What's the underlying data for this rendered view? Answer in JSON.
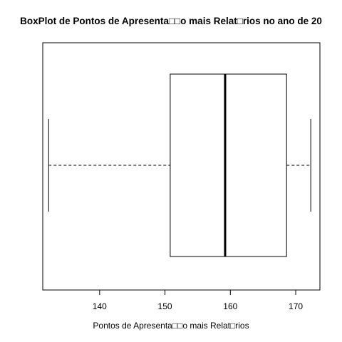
{
  "chart_data": {
    "type": "boxplot",
    "orientation": "horizontal",
    "title": "BoxPlot de Pontos de Apresenta□□o mais Relat□rios no ano de 20",
    "xlabel": "Pontos de Apresenta□□o mais Relat□rios",
    "ylabel": "",
    "xlim": [
      131.3,
      173.7
    ],
    "x_ticks": [
      140,
      150,
      160,
      170
    ],
    "x_tick_labels": [
      "140",
      "150",
      "160",
      "170"
    ],
    "grid": false,
    "box": {
      "min": 132.2,
      "q1": 150.8,
      "median": 159.2,
      "q3": 168.6,
      "max": 172.3
    },
    "colors": {
      "box_fill": "#ffffff",
      "stroke": "#000000"
    }
  }
}
